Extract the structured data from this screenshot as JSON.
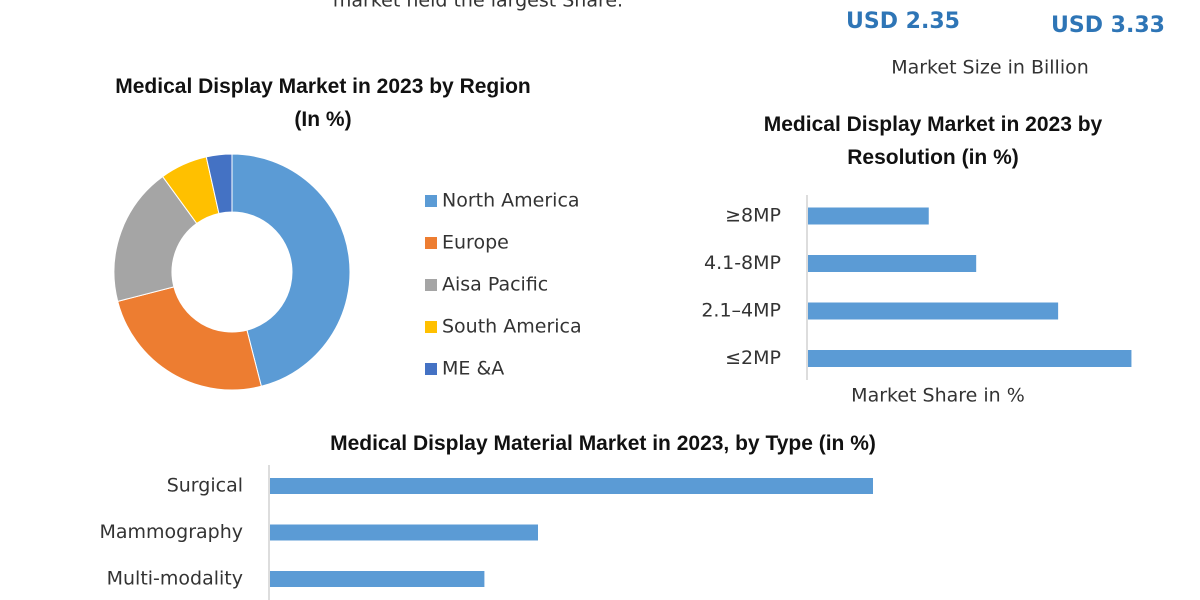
{
  "header": {
    "note": "market held the largest Share.",
    "market_sizes": [
      "USD 2.35",
      "USD 3.33"
    ],
    "market_size_label": "Market Size in Billion"
  },
  "chart_data": [
    {
      "type": "pie",
      "donut": true,
      "title": "Medical Display Market in 2023 by Region (In %)",
      "categories": [
        "North America",
        "Europe",
        "Aisa Pacific",
        "South America",
        "ME &A"
      ],
      "values": [
        46,
        25,
        19,
        6.5,
        3.5
      ],
      "colors": [
        "#5b9bd5",
        "#ed7d31",
        "#a5a5a5",
        "#ffc000",
        "#4472c4"
      ],
      "legend": "right"
    },
    {
      "type": "bar",
      "orientation": "horizontal",
      "title": "Medical Display Market in 2023 by Resolution (in %)",
      "categories": [
        "≥8MP",
        "4.1-8MP",
        "2.1–4MP",
        "≤2MP"
      ],
      "values": [
        14,
        19.5,
        29,
        37.5
      ],
      "color": "#5b9bd5",
      "xlim": [
        0,
        40
      ],
      "x_label": "Market Share in %"
    },
    {
      "type": "bar",
      "orientation": "horizontal",
      "title": "Medical Display Material Market in 2023, by Type (in %)",
      "categories": [
        "Surgical",
        "Mammography",
        "Multi-modality"
      ],
      "values": [
        45,
        20,
        16
      ],
      "color": "#5b9bd5",
      "xlim": [
        0,
        60
      ]
    }
  ]
}
